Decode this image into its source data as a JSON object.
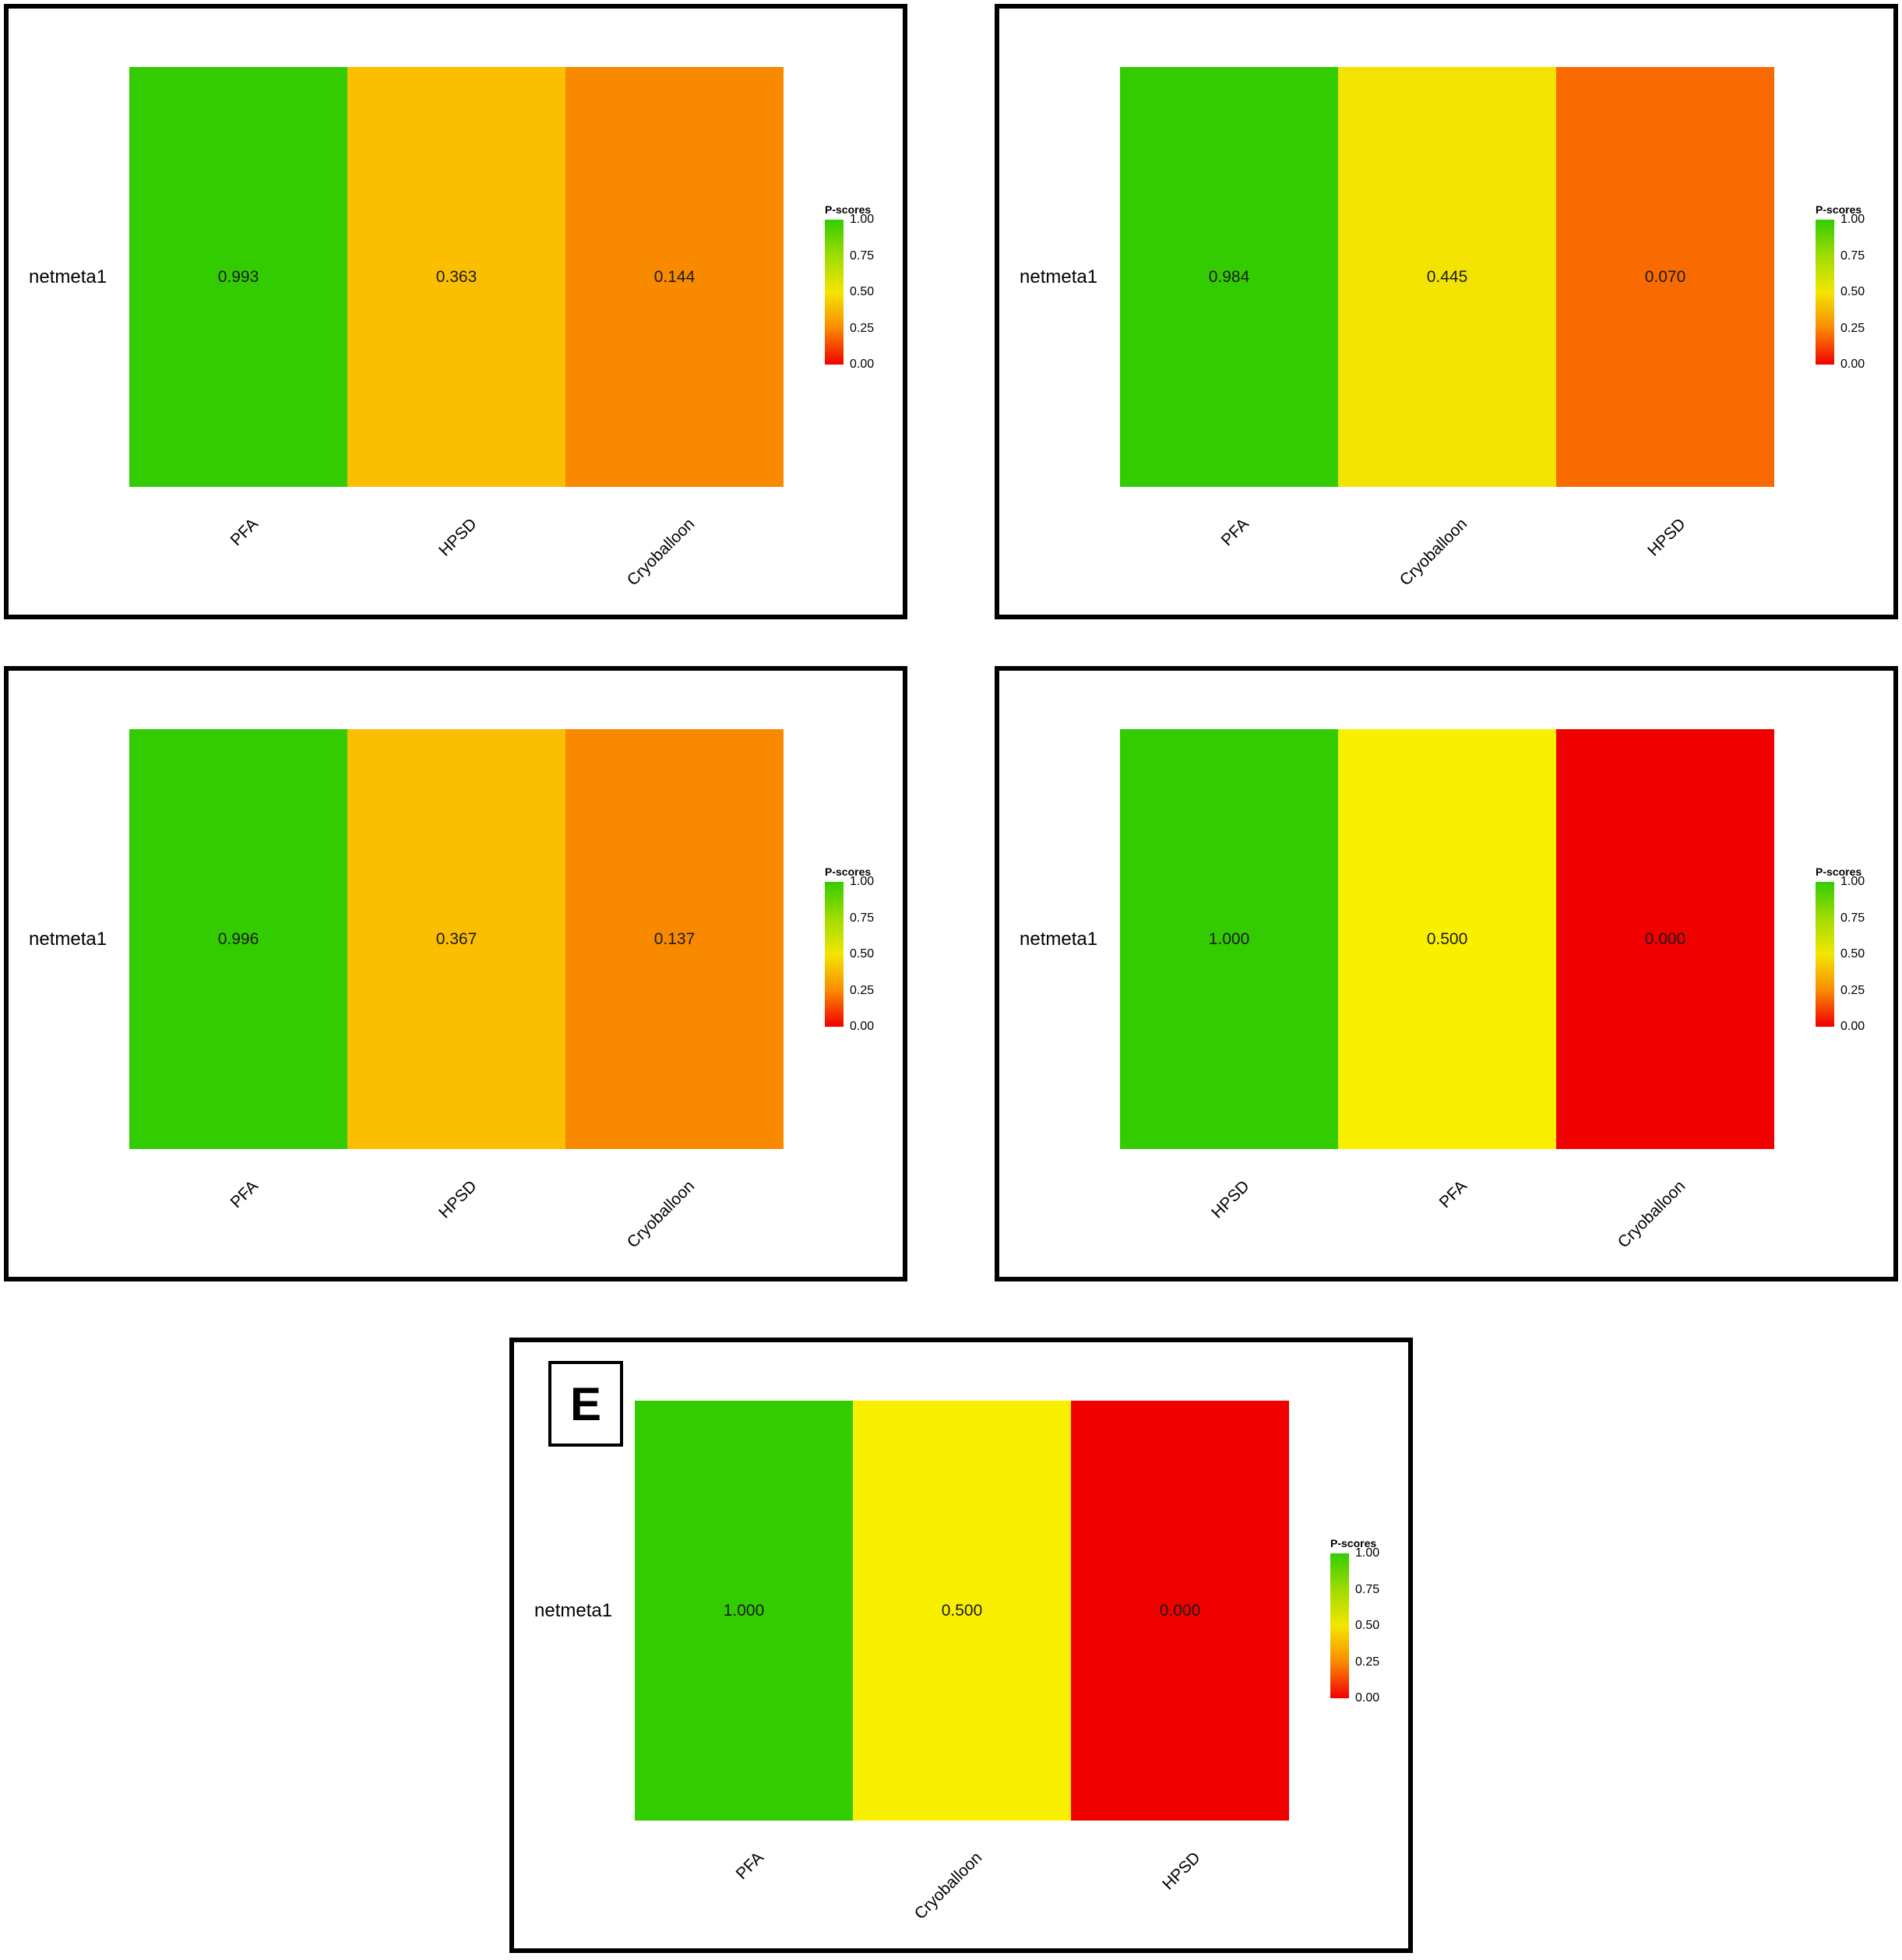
{
  "legend_ticks": [
    "1.00",
    "0.75",
    "0.50",
    "0.25",
    "0.00"
  ],
  "legend_gradient_stops": [
    "#33CC00",
    "#9FDC00",
    "#F3E600",
    "#FA8A00",
    "#F10000"
  ],
  "chart_data": [
    {
      "type": "heatmap",
      "grid_position": "top-left",
      "panel_label": "",
      "row_label": "netmeta1",
      "categories": [
        "PFA",
        "HPSD",
        "Cryoballoon"
      ],
      "values": [
        0.993,
        0.363,
        0.144
      ],
      "value_labels": [
        "0.993",
        "0.363",
        "0.144"
      ],
      "cell_colors": [
        "#33CC00",
        "#FBBE00",
        "#F98A00"
      ],
      "legend_title": "P-scores",
      "value_range": [
        0,
        1
      ],
      "legend_position": "right"
    },
    {
      "type": "heatmap",
      "grid_position": "top-right",
      "panel_label": "",
      "row_label": "netmeta1",
      "categories": [
        "PFA",
        "Cryoballoon",
        "HPSD"
      ],
      "values": [
        0.984,
        0.445,
        0.07
      ],
      "value_labels": [
        "0.984",
        "0.445",
        "0.070"
      ],
      "cell_colors": [
        "#33CC00",
        "#F3E300",
        "#F96A00"
      ],
      "legend_title": "P-scores",
      "value_range": [
        0,
        1
      ],
      "legend_position": "right"
    },
    {
      "type": "heatmap",
      "grid_position": "middle-left",
      "panel_label": "",
      "row_label": "netmeta1",
      "categories": [
        "PFA",
        "HPSD",
        "Cryoballoon"
      ],
      "values": [
        0.996,
        0.367,
        0.137
      ],
      "value_labels": [
        "0.996",
        "0.367",
        "0.137"
      ],
      "cell_colors": [
        "#33CC00",
        "#FBBE00",
        "#F98A00"
      ],
      "legend_title": "P-scores",
      "value_range": [
        0,
        1
      ],
      "legend_position": "right"
    },
    {
      "type": "heatmap",
      "grid_position": "middle-right",
      "panel_label": "",
      "row_label": "netmeta1",
      "categories": [
        "HPSD",
        "PFA",
        "Cryoballoon"
      ],
      "values": [
        1.0,
        0.5,
        0.0
      ],
      "value_labels": [
        "1.000",
        "0.500",
        "0.000"
      ],
      "cell_colors": [
        "#33CC00",
        "#F9F000",
        "#F10000"
      ],
      "legend_title": "P-scores",
      "value_range": [
        0,
        1
      ],
      "legend_position": "right"
    },
    {
      "type": "heatmap",
      "grid_position": "bottom-center",
      "panel_label": "E",
      "row_label": "netmeta1",
      "categories": [
        "PFA",
        "Cryoballoon",
        "HPSD"
      ],
      "values": [
        1.0,
        0.5,
        0.0
      ],
      "value_labels": [
        "1.000",
        "0.500",
        "0.000"
      ],
      "cell_colors": [
        "#33CC00",
        "#F9F000",
        "#F10000"
      ],
      "legend_title": "P-scores",
      "value_range": [
        0,
        1
      ],
      "legend_position": "right"
    }
  ]
}
